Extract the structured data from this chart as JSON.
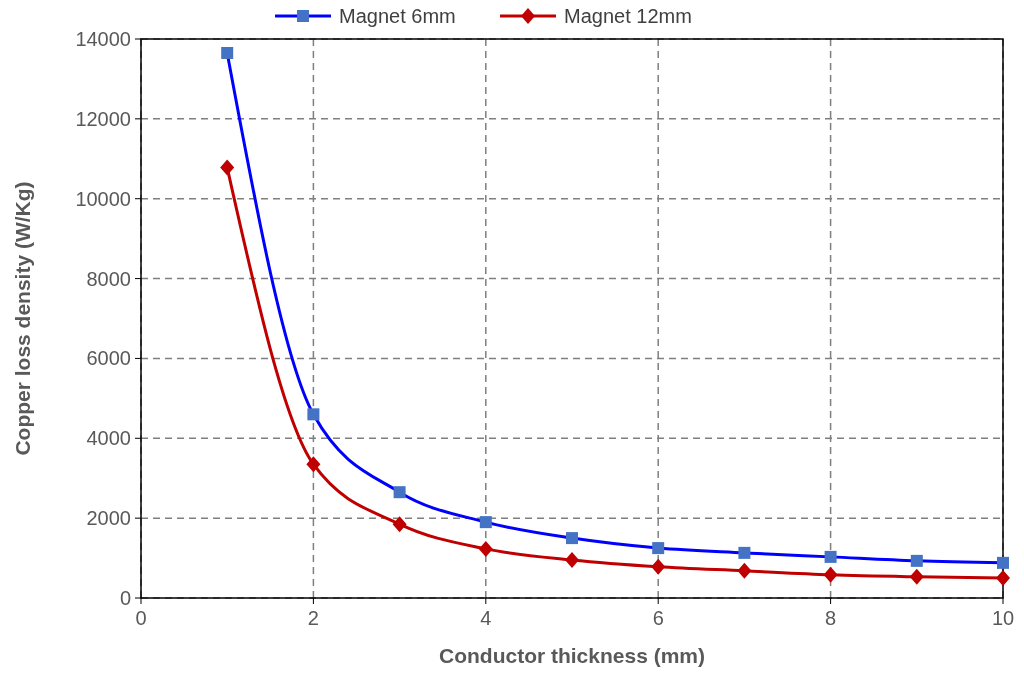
{
  "chart_data": {
    "type": "line",
    "xlabel": "Conductor thickness (mm)",
    "ylabel": "Copper loss density (W/Kg)",
    "x": [
      1,
      2,
      3,
      4,
      5,
      6,
      7,
      8,
      9,
      10
    ],
    "series": [
      {
        "name": "Magnet 6mm",
        "color": "#0000ff",
        "marker": "square",
        "values": [
          13650,
          4600,
          2650,
          1900,
          1500,
          1250,
          1130,
          1030,
          930,
          880
        ]
      },
      {
        "name": "Magnet 12mm",
        "color": "#c00000",
        "marker": "diamond",
        "values": [
          10780,
          3350,
          1850,
          1230,
          950,
          780,
          680,
          580,
          530,
          500
        ]
      }
    ],
    "xlim": [
      0,
      10
    ],
    "xticks": [
      0,
      2,
      4,
      6,
      8,
      10
    ],
    "ylim": [
      0,
      14000
    ],
    "yticks": [
      0,
      2000,
      4000,
      6000,
      8000,
      10000,
      12000,
      14000
    ],
    "grid": true,
    "legend": "top",
    "line_style": "solid"
  }
}
